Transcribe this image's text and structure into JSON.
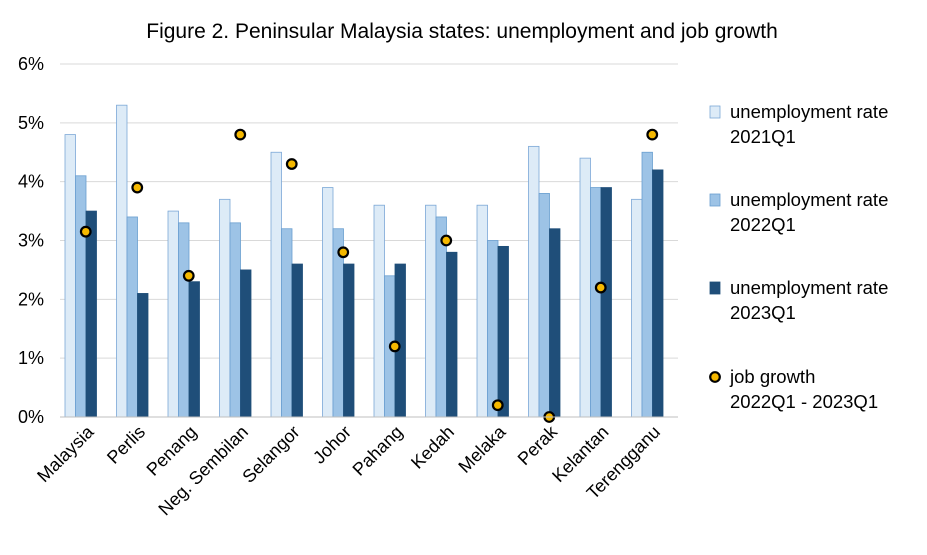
{
  "chart_data": {
    "type": "bar",
    "title": "Figure 2. Peninsular Malaysia states: unemployment and job growth",
    "xlabel": "",
    "ylabel": "",
    "ylim": [
      0,
      6
    ],
    "ytick_labels": [
      "0%",
      "1%",
      "2%",
      "3%",
      "4%",
      "5%",
      "6%"
    ],
    "grid": true,
    "legend_position": "right",
    "categories": [
      "Malaysia",
      "Perlis",
      "Penang",
      "Neg. Sembilan",
      "Selangor",
      "Johor",
      "Pahang",
      "Kedah",
      "Melaka",
      "Perak",
      "Kelantan",
      "Terengganu"
    ],
    "series": [
      {
        "name": "unemployment rate 2021Q1",
        "legend_lines": [
          "unemployment rate",
          "2021Q1"
        ],
        "kind": "bar",
        "color": "#ddebf7",
        "stroke": "#7ba7d6",
        "values": [
          4.8,
          5.3,
          3.5,
          3.7,
          4.5,
          3.9,
          3.6,
          3.6,
          3.6,
          4.6,
          4.4,
          3.7
        ]
      },
      {
        "name": "unemployment rate 2022Q1",
        "legend_lines": [
          "unemployment rate",
          "2022Q1"
        ],
        "kind": "bar",
        "color": "#9dc3e6",
        "stroke": "#6a9fd0",
        "values": [
          4.1,
          3.4,
          3.3,
          3.3,
          3.2,
          3.2,
          2.4,
          3.4,
          3.0,
          3.8,
          3.9,
          4.5
        ]
      },
      {
        "name": "unemployment rate 2023Q1",
        "legend_lines": [
          "unemployment rate",
          "2023Q1"
        ],
        "kind": "bar",
        "color": "#1f4e79",
        "stroke": "#1f4e79",
        "values": [
          3.5,
          2.1,
          2.3,
          2.5,
          2.6,
          2.6,
          2.6,
          2.8,
          2.9,
          3.2,
          3.9,
          4.2
        ]
      },
      {
        "name": "job growth 2022Q1 - 2023Q1",
        "legend_lines": [
          "job growth",
          "2022Q1 - 2023Q1"
        ],
        "kind": "point",
        "color": "#f5b800",
        "stroke": "#000000",
        "values": [
          3.15,
          3.9,
          2.4,
          4.8,
          4.3,
          2.8,
          1.2,
          3.0,
          0.2,
          0.0,
          2.2,
          4.8
        ]
      }
    ]
  }
}
